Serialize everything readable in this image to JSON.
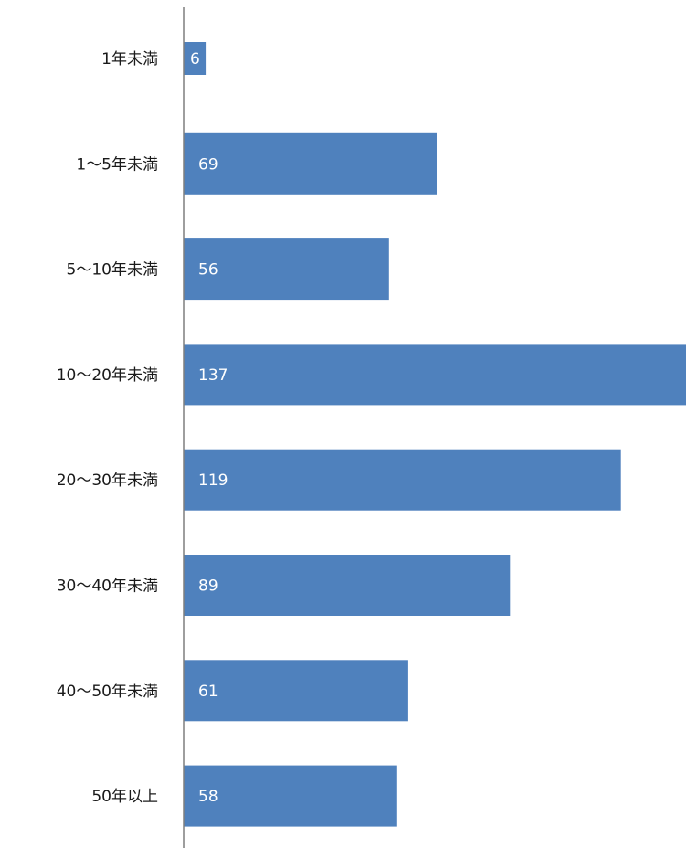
{
  "chart_data": {
    "type": "bar",
    "orientation": "horizontal",
    "categories": [
      "1年未満",
      "1～5年未満",
      "5～10年未満",
      "10～20年未満",
      "20～30年未満",
      "30～40年未満",
      "40～50年未満",
      "50年以上"
    ],
    "values": [
      6,
      69,
      56,
      137,
      119,
      89,
      61,
      58
    ],
    "title": "",
    "xlabel": "",
    "ylabel": "",
    "xlim": [
      0,
      137
    ],
    "grid": false,
    "legend": "none",
    "bar_color": "#4f81bd",
    "axis_color": "#7f7f7f",
    "data_labels": "inside-base"
  }
}
